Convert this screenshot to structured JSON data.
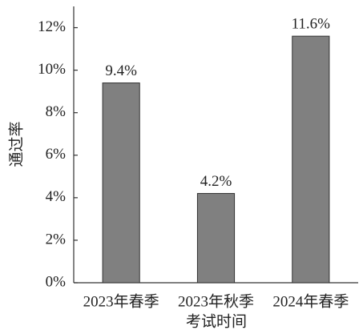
{
  "chart_data": {
    "type": "bar",
    "x_label": "考试时间",
    "y_label": "通过率",
    "categories": [
      "2023年春季",
      "2023年秋季",
      "2024年春季"
    ],
    "values": [
      9.4,
      4.2,
      11.6
    ],
    "value_labels": [
      "9.4%",
      "4.2%",
      "11.6%"
    ],
    "color": "#808080",
    "ylim": [
      0,
      13
    ],
    "yticks": [
      {
        "value": 0,
        "label": "0%"
      },
      {
        "value": 2,
        "label": "2%"
      },
      {
        "value": 4,
        "label": "4%"
      },
      {
        "value": 6,
        "label": "6%"
      },
      {
        "value": 8,
        "label": "8%"
      },
      {
        "value": 10,
        "label": "10%"
      },
      {
        "value": 12,
        "label": "12%"
      }
    ],
    "grid": false
  }
}
